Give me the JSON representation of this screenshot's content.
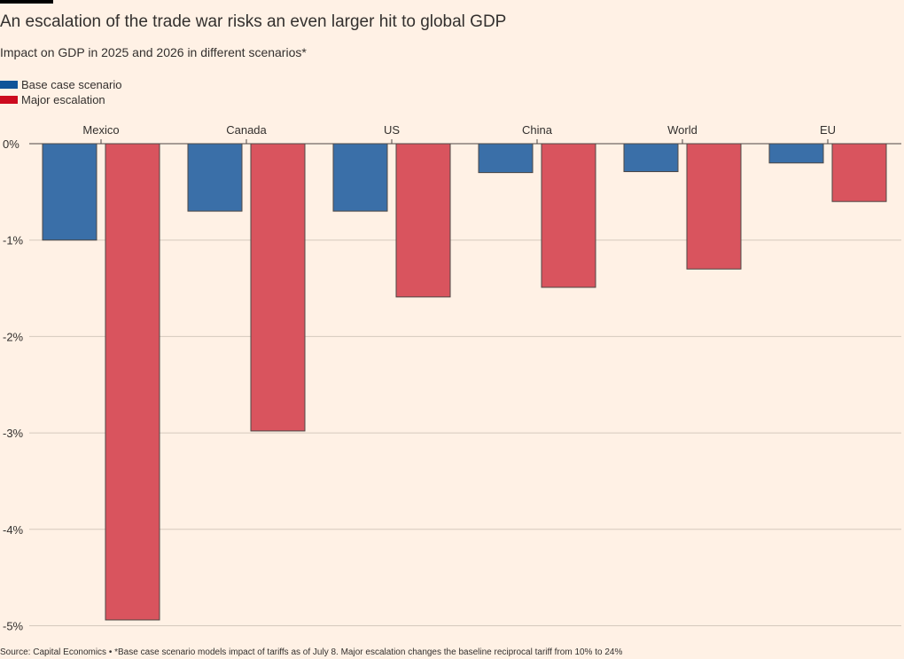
{
  "title": "An escalation of the trade war risks an even larger hit to global GDP",
  "subtitle": "Impact on GDP in 2025 and 2026 in different scenarios*",
  "legend": [
    {
      "label": "Base case scenario",
      "color": "#0f5499"
    },
    {
      "label": "Major escalation",
      "color": "#cc0a1e"
    }
  ],
  "footer": "Source: Capital Economics • *Base case scenario models impact of tariffs as of July 8. Major escalation changes the baseline reciprocal tariff from 10% to 24%",
  "chart_data": {
    "type": "bar",
    "categories": [
      "Mexico",
      "Canada",
      "US",
      "China",
      "World",
      "EU"
    ],
    "series": [
      {
        "name": "Base case scenario",
        "color": "#3a6fa8",
        "values": [
          -1.0,
          -0.7,
          -0.7,
          -0.3,
          -0.29,
          -0.2
        ]
      },
      {
        "name": "Major escalation",
        "color": "#d9545e",
        "values": [
          -4.94,
          -2.98,
          -1.59,
          -1.49,
          -1.3,
          -0.6
        ]
      }
    ],
    "ylim": [
      -5,
      0
    ],
    "yticks": [
      0,
      -1,
      -2,
      -3,
      -4,
      -5
    ],
    "ytick_labels": [
      "0%",
      "-1%",
      "-2%",
      "-3%",
      "-4%",
      "-5%"
    ],
    "xlabel": "",
    "ylabel": "",
    "grid": true,
    "legend_position": "top-left"
  }
}
